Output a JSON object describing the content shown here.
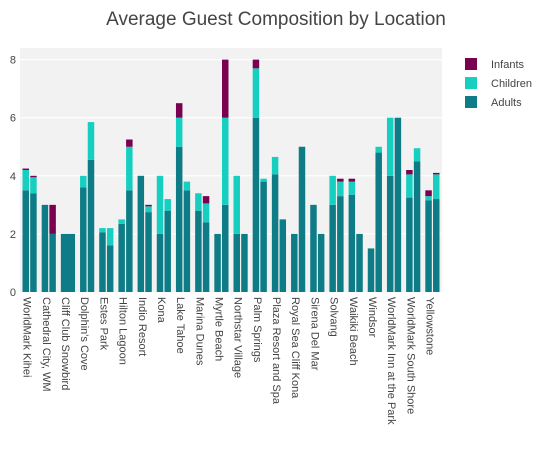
{
  "chart_data": {
    "type": "bar",
    "stacked": true,
    "title": "Average Guest Composition by Location",
    "xlabel": "",
    "ylabel": "",
    "ylim": [
      0,
      8.4
    ],
    "yticks": [
      0,
      2,
      4,
      6,
      8
    ],
    "grid": true,
    "legend_position": "top-right",
    "colors": {
      "Adults": "#0e7c86",
      "Children": "#17cfc1",
      "Infants": "#7a0150"
    },
    "categories": [
      {
        "label": "WorldMark Kihei",
        "bars": [
          [
            3.5,
            0.7,
            0.05
          ],
          [
            3.4,
            0.55,
            0.05
          ]
        ]
      },
      {
        "label": "Cathedral City, WM",
        "bars": [
          [
            3.0,
            0,
            0
          ],
          [
            2.0,
            0,
            1.0
          ]
        ]
      },
      {
        "label": "Cliff Club Snowbird",
        "bars": [
          [
            2.0,
            0,
            0
          ]
        ]
      },
      {
        "label": "Dolphin's Cove",
        "bars": [
          [
            3.6,
            0.4,
            0
          ],
          [
            4.55,
            1.3,
            0
          ]
        ]
      },
      {
        "label": "Estes Park",
        "bars": [
          [
            2.05,
            0.15,
            0
          ],
          [
            1.6,
            0.6,
            0
          ]
        ]
      },
      {
        "label": "Hilton Lagoon",
        "bars": [
          [
            2.35,
            0.15,
            0
          ],
          [
            3.5,
            1.5,
            0.25
          ]
        ]
      },
      {
        "label": "Indio Resort",
        "bars": [
          [
            4.0,
            0,
            0
          ],
          [
            2.75,
            0.2,
            0.05
          ]
        ]
      },
      {
        "label": "Kona",
        "bars": [
          [
            2.0,
            2.0,
            0
          ],
          [
            2.8,
            0.4,
            0
          ]
        ]
      },
      {
        "label": "Lake Tahoe",
        "bars": [
          [
            5.0,
            1.0,
            0.5
          ],
          [
            3.5,
            0.3,
            0
          ]
        ]
      },
      {
        "label": "Marina Dunes",
        "bars": [
          [
            2.8,
            0.6,
            0
          ],
          [
            2.4,
            0.65,
            0.25
          ]
        ]
      },
      {
        "label": "Myrtle Beach",
        "bars": [
          [
            2.0,
            0,
            0
          ],
          [
            3.0,
            3.0,
            2.0
          ]
        ]
      },
      {
        "label": "Northstar Village",
        "bars": [
          [
            2.0,
            2.0,
            0
          ],
          [
            2.0,
            0,
            0
          ]
        ]
      },
      {
        "label": "Palm Springs",
        "bars": [
          [
            6.0,
            1.7,
            0.3
          ],
          [
            3.8,
            0.1,
            0
          ]
        ]
      },
      {
        "label": "Plaza Resort and Spa",
        "bars": [
          [
            4.05,
            0.6,
            0
          ],
          [
            2.5,
            0,
            0
          ]
        ]
      },
      {
        "label": "Royal Sea Cliff Kona",
        "bars": [
          [
            2.0,
            0,
            0
          ],
          [
            5.0,
            0,
            0
          ]
        ]
      },
      {
        "label": "Sirena Del Mar",
        "bars": [
          [
            3.0,
            0,
            0
          ],
          [
            2.0,
            0,
            0
          ]
        ]
      },
      {
        "label": "Solvang",
        "bars": [
          [
            3.0,
            1.0,
            0
          ],
          [
            3.3,
            0.5,
            0.1
          ]
        ]
      },
      {
        "label": "Waikiki Beach",
        "bars": [
          [
            3.35,
            0.45,
            0.1
          ],
          [
            2.0,
            0,
            0
          ]
        ]
      },
      {
        "label": "Windsor",
        "bars": [
          [
            1.5,
            0,
            0
          ],
          [
            4.8,
            0.2,
            0
          ]
        ]
      },
      {
        "label": "WorldMark Inn at the Park",
        "bars": [
          [
            4.0,
            2.0,
            0
          ],
          [
            6.0,
            0,
            0
          ]
        ]
      },
      {
        "label": "WorldMark South Shore",
        "bars": [
          [
            3.25,
            0.8,
            0.15
          ],
          [
            4.5,
            0.45,
            0
          ]
        ]
      },
      {
        "label": "Yellowstone",
        "bars": [
          [
            3.15,
            0.15,
            0.2
          ],
          [
            3.2,
            0.85,
            0.05
          ]
        ]
      }
    ],
    "series_order": [
      "Adults",
      "Children",
      "Infants"
    ],
    "legend": [
      "Infants",
      "Children",
      "Adults"
    ]
  }
}
